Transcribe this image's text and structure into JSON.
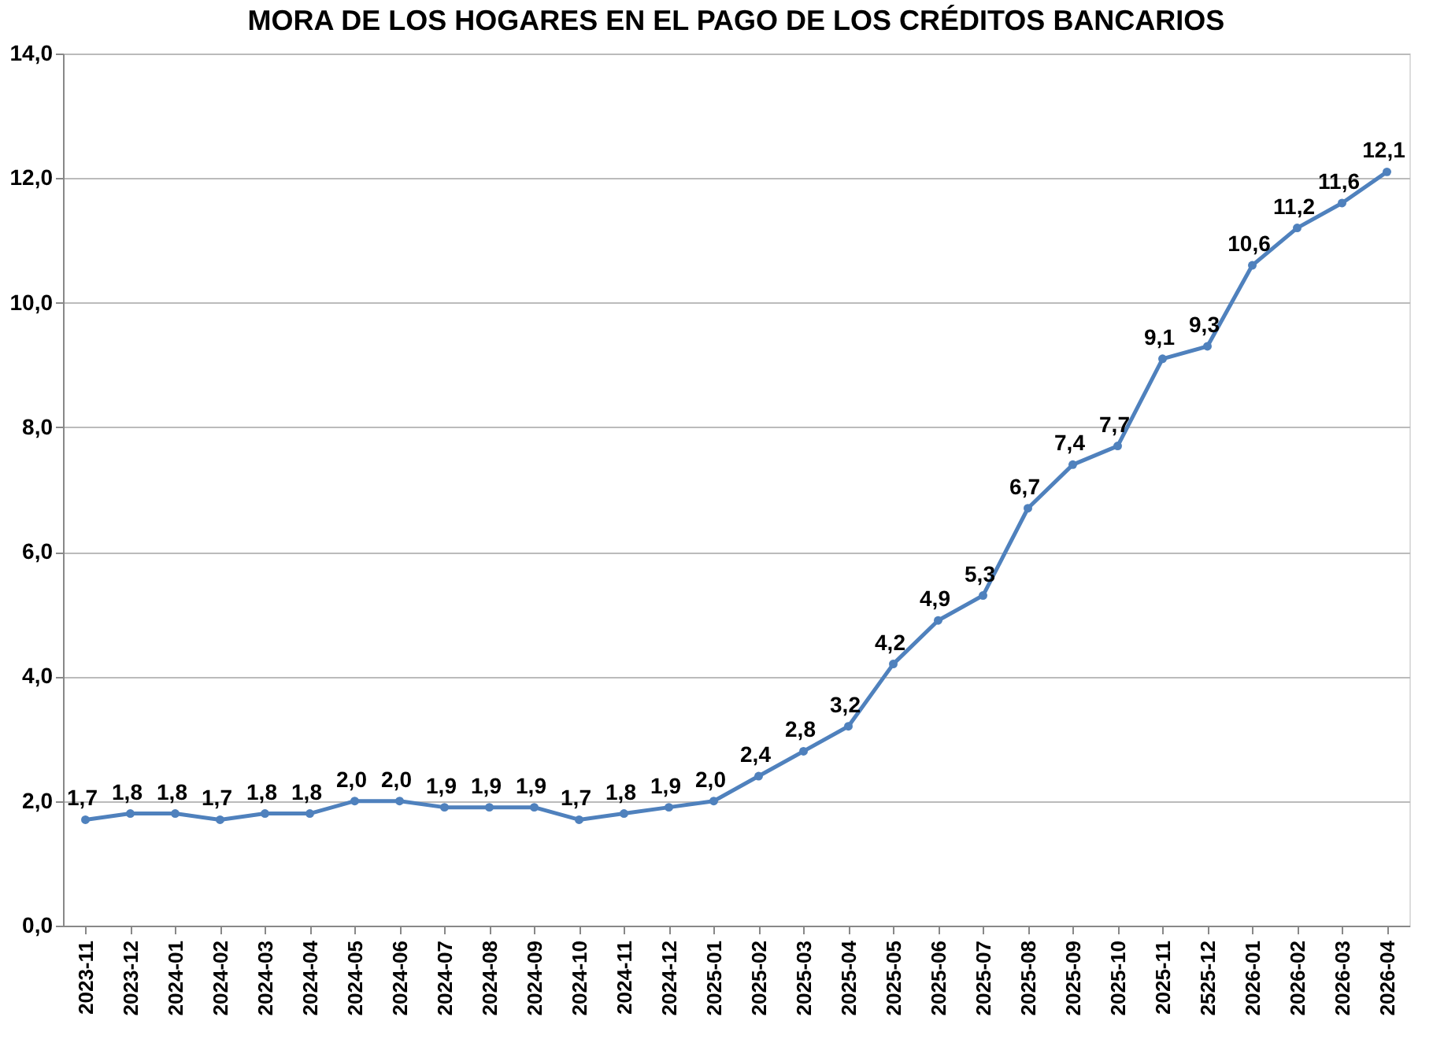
{
  "chart_data": {
    "type": "line",
    "title": "MORA DE LOS HOGARES EN EL PAGO DE LOS CRÉDITOS BANCARIOS",
    "categories": [
      "2023-11",
      "2023-12",
      "2024-01",
      "2024-02",
      "2024-03",
      "2024-04",
      "2024-05",
      "2024-06",
      "2024-07",
      "2024-08",
      "2024-09",
      "2024-10",
      "2024-11",
      "2024-12",
      "2025-01",
      "2025-02",
      "2025-03",
      "2025-04",
      "2025-05",
      "2025-06",
      "2025-07",
      "2025-08",
      "2025-09",
      "2025-10",
      "2025-11",
      "2525-12",
      "2026-01",
      "2026-02",
      "2026-03",
      "2026-04"
    ],
    "series": [
      {
        "color": "#4f81bd",
        "values": [
          1.7,
          1.8,
          1.8,
          1.7,
          1.8,
          1.8,
          2.0,
          2.0,
          1.9,
          1.9,
          1.9,
          1.7,
          1.8,
          1.9,
          2.0,
          2.4,
          2.8,
          3.2,
          4.2,
          4.9,
          5.3,
          6.7,
          7.4,
          7.7,
          9.1,
          9.3,
          10.6,
          11.2,
          11.6,
          12.1
        ],
        "value_labels": [
          "1,7",
          "1,8",
          "1,8",
          "1,7",
          "1,8",
          "1,8",
          "2,0",
          "2,0",
          "1,9",
          "1,9",
          "1,9",
          "1,7",
          "1,8",
          "1,9",
          "2,0",
          "2,4",
          "2,8",
          "3,2",
          "4,2",
          "4,9",
          "5,3",
          "6,7",
          "7,4",
          "7,7",
          "9,1",
          "9,3",
          "10,6",
          "11,2",
          "11,6",
          "12,1"
        ]
      }
    ],
    "ylim": [
      0,
      14
    ],
    "yticks": [
      {
        "value": 0,
        "label": "0,0"
      },
      {
        "value": 2,
        "label": "2,0"
      },
      {
        "value": 4,
        "label": "4,0"
      },
      {
        "value": 6,
        "label": "6,0"
      },
      {
        "value": 8,
        "label": "8,0"
      },
      {
        "value": 10,
        "label": "10,0"
      },
      {
        "value": 12,
        "label": "12,0"
      },
      {
        "value": 14,
        "label": "14,0"
      }
    ],
    "grid": "y",
    "marker": "circle",
    "line_style": "solid"
  }
}
